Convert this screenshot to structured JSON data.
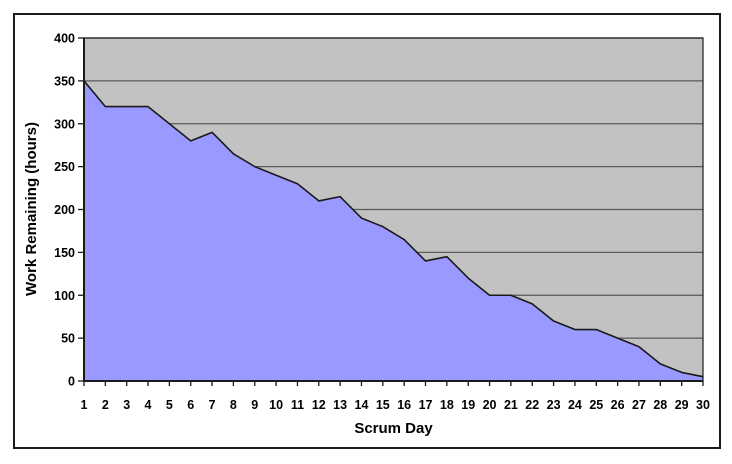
{
  "chart_data": {
    "type": "area",
    "title": "",
    "xlabel": "Scrum Day",
    "ylabel": "Work Remaining (hours)",
    "categories": [
      1,
      2,
      3,
      4,
      5,
      6,
      7,
      8,
      9,
      10,
      11,
      12,
      13,
      14,
      15,
      16,
      17,
      18,
      19,
      20,
      21,
      22,
      23,
      24,
      25,
      26,
      27,
      28,
      29,
      30
    ],
    "values": [
      350,
      320,
      320,
      320,
      300,
      280,
      290,
      265,
      250,
      240,
      230,
      210,
      215,
      190,
      180,
      165,
      140,
      145,
      120,
      100,
      100,
      90,
      70,
      60,
      60,
      50,
      40,
      20,
      10,
      5
    ],
    "ylim": [
      0,
      400
    ],
    "yticks": [
      0,
      50,
      100,
      150,
      200,
      250,
      300,
      350,
      400
    ],
    "grid": "horizontal-major",
    "legend": "none",
    "series_name": "Work Remaining",
    "colors": {
      "area_fill": "#9999FF",
      "area_stroke": "#1a1a1a",
      "plot_bg": "#C2C2C2",
      "gridline": "#595959",
      "axis": "#1a1a1a",
      "frame": "#1c1c1c",
      "text": "#000000",
      "page_bg": "#FFFFFF"
    }
  }
}
